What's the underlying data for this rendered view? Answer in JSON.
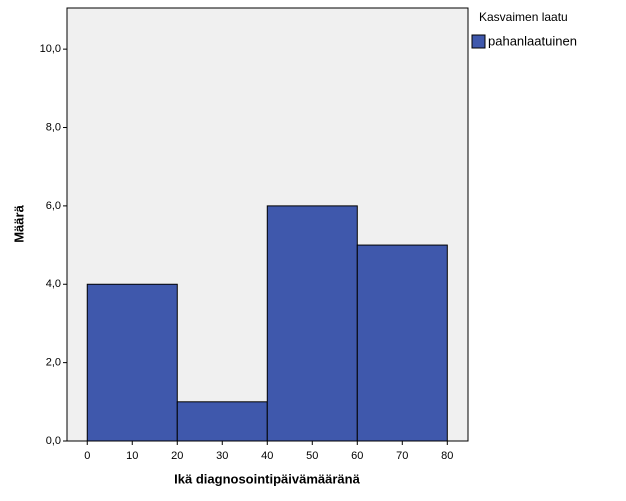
{
  "chart_data": {
    "type": "histogram",
    "x_label": "Ikä diagnosointipäivämääränä",
    "y_label": "Määrä",
    "legend_title": "Kasvaimen laatu",
    "legend_position": "right",
    "bins": [
      0,
      20,
      40,
      60,
      80
    ],
    "series": [
      {
        "name": "pahanlaatuinen",
        "color": "#3f58ac",
        "values": [
          4,
          1,
          6,
          5
        ]
      }
    ],
    "xlim": [
      -4.5,
      84.6
    ],
    "ylim": [
      0,
      11.05
    ],
    "xticks": [
      0,
      10,
      20,
      30,
      40,
      50,
      60,
      70,
      80
    ],
    "yticks": [
      {
        "value": 0,
        "label": "0,0"
      },
      {
        "value": 2,
        "label": "2,0"
      },
      {
        "value": 4,
        "label": "4,0"
      },
      {
        "value": 6,
        "label": "6,0"
      },
      {
        "value": 8,
        "label": "8,0"
      },
      {
        "value": 10,
        "label": "10,0"
      }
    ],
    "background": "#f0f0f0"
  }
}
